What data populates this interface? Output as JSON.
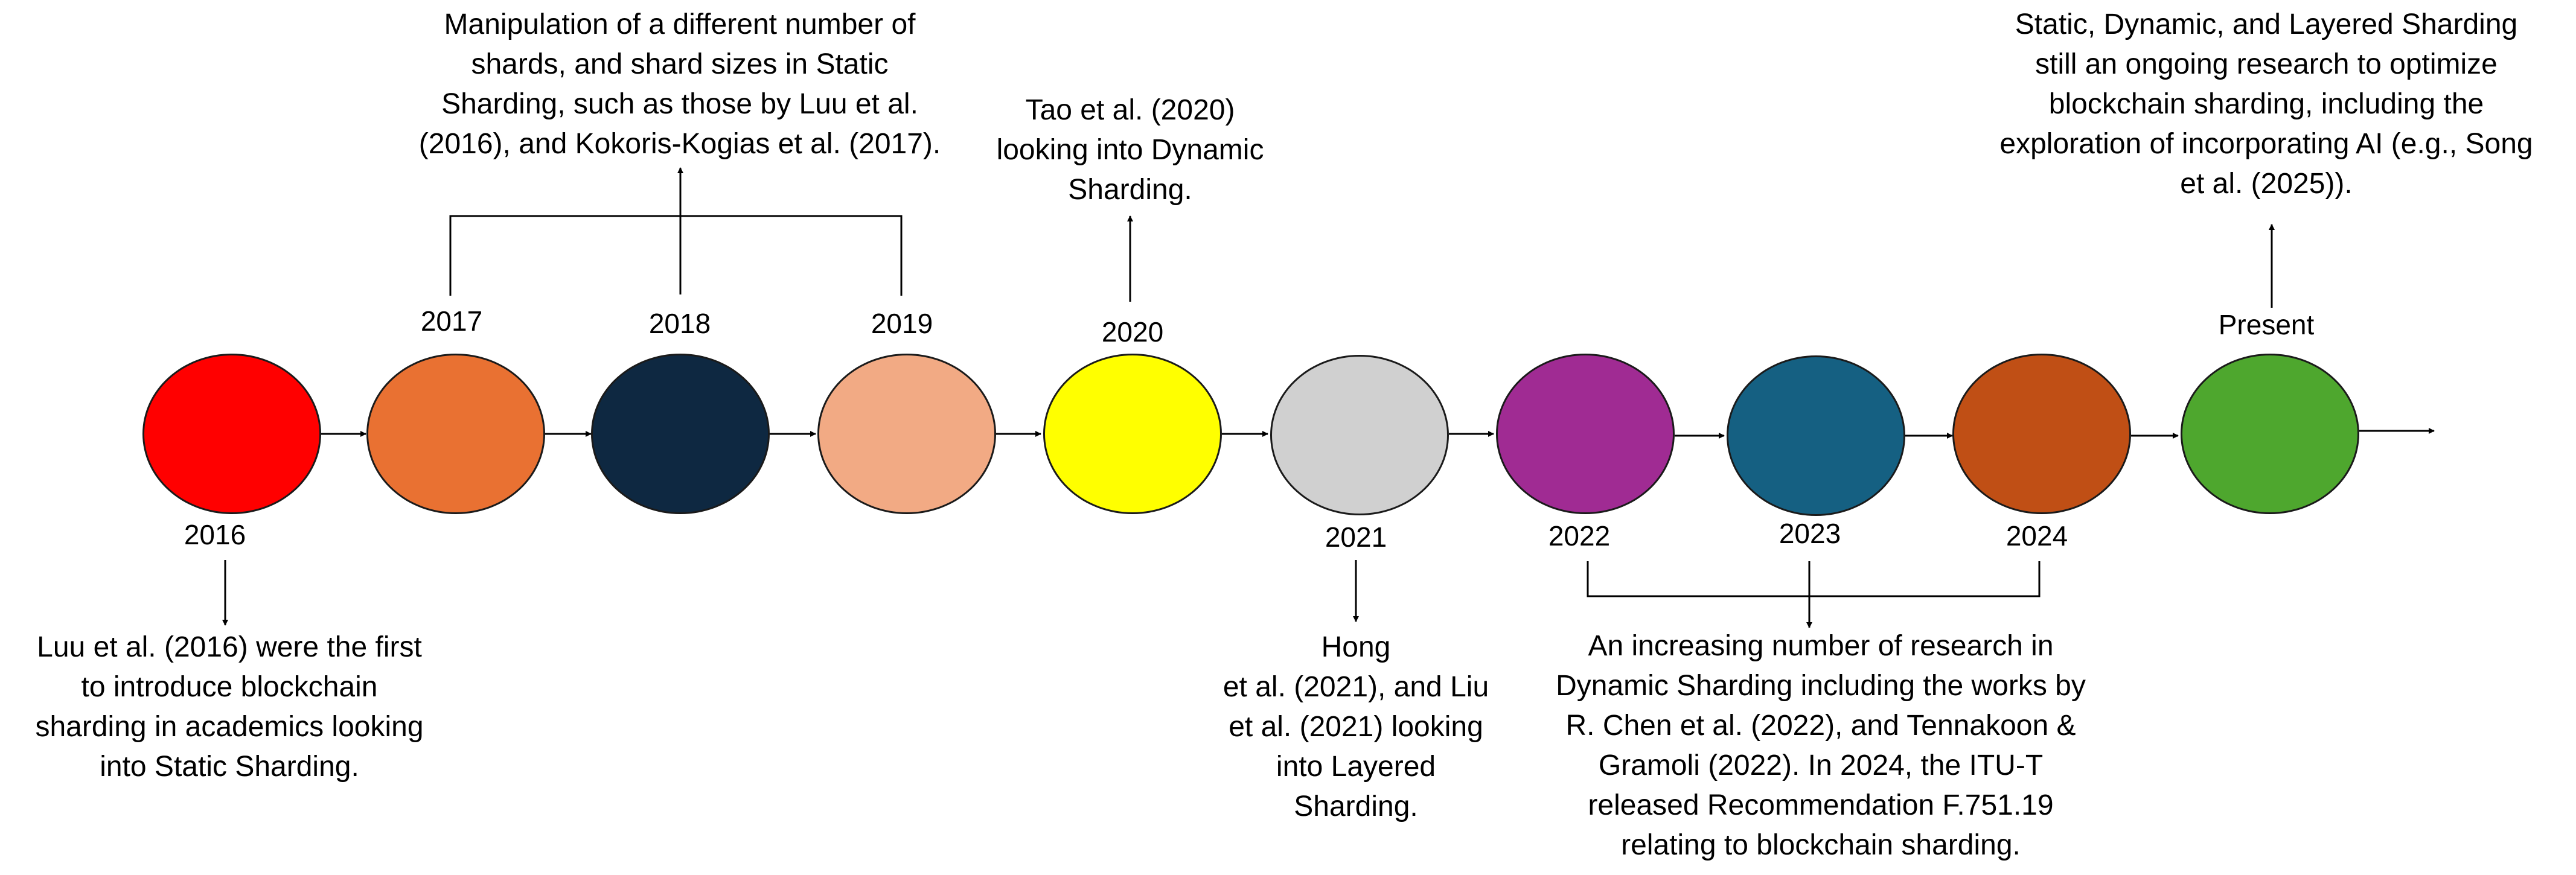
{
  "milestones": [
    {
      "id": "m2016",
      "label": "2016",
      "color": "#ff0000"
    },
    {
      "id": "m2017",
      "label": "2017",
      "color": "#e97132"
    },
    {
      "id": "m2018",
      "label": "2018",
      "color": "#0e2841"
    },
    {
      "id": "m2019",
      "label": "2019",
      "color": "#f2aa84"
    },
    {
      "id": "m2020",
      "label": "2020",
      "color": "#ffff00"
    },
    {
      "id": "m2021",
      "label": "2021",
      "color": "#d0d0d0"
    },
    {
      "id": "m2022",
      "label": "2022",
      "color": "#a02b93"
    },
    {
      "id": "m2023",
      "label": "2023",
      "color": "#156082"
    },
    {
      "id": "m2024",
      "label": "2024",
      "color": "#c04f15"
    },
    {
      "id": "mpresent",
      "label": "Present",
      "color": "#4ea72e"
    }
  ],
  "notes": {
    "n2016": "Luu et al. (2016) were the first\nto introduce blockchain\nsharding in academics looking\ninto Static Sharding.",
    "n2017_2019": "Manipulation of a different number of\nshards, and shard sizes in Static\nSharding, such as those by  Luu et al.\n(2016), and Kokoris-Kogias et al. (2017).",
    "n2020": "Tao et al. (2020)\nlooking into Dynamic\nSharding.",
    "n2021": "Hong\net al. (2021), and Liu\net al. (2021) looking\ninto Layered\nSharding.",
    "n2022_2024": "An increasing number of research in\nDynamic Sharding including the works by\nR. Chen et al. (2022), and Tennakoon &\nGramoli (2022). In 2024, the ITU-T\nreleased Recommendation F.751.19\nrelating to blockchain sharding.",
    "npresent": "Static, Dynamic, and Layered Sharding\nstill an ongoing research to optimize\nblockchain sharding, including the\nexploration of incorporating AI (e.g., Song\net al. (2025))."
  }
}
